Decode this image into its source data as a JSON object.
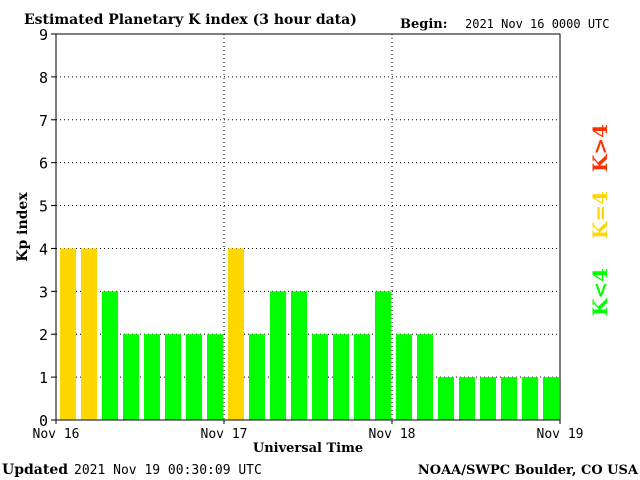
{
  "header": {
    "title": "Estimated Planetary K index (3 hour data)",
    "begin_label": "Begin:",
    "begin_value": "2021 Nov 16 0000 UTC"
  },
  "footer": {
    "updated_label": "Updated",
    "updated_value": "2021 Nov 19 00:30:09 UTC",
    "credit": "NOAA/SWPC Boulder, CO USA"
  },
  "legend": {
    "high": "K>4",
    "equal": "K=4",
    "low": "K<4"
  },
  "colors": {
    "low": "#00ff00",
    "equal": "#ffd700",
    "high": "#ff3300"
  },
  "chart_data": {
    "type": "bar",
    "title": "Estimated Planetary K index (3 hour data)",
    "xlabel": "Universal Time",
    "ylabel": "Kp index",
    "ylim": [
      0,
      9
    ],
    "yticks": [
      0,
      1,
      2,
      3,
      4,
      5,
      6,
      7,
      8,
      9
    ],
    "grid": true,
    "x_tick_labels": [
      "Nov 16",
      "Nov 17",
      "Nov 18",
      "Nov 19"
    ],
    "values": [
      4,
      4,
      3,
      2,
      2,
      2,
      2,
      2,
      4,
      2,
      3,
      3,
      2,
      2,
      2,
      3,
      2,
      2,
      1,
      1,
      1,
      1,
      1,
      1
    ]
  }
}
